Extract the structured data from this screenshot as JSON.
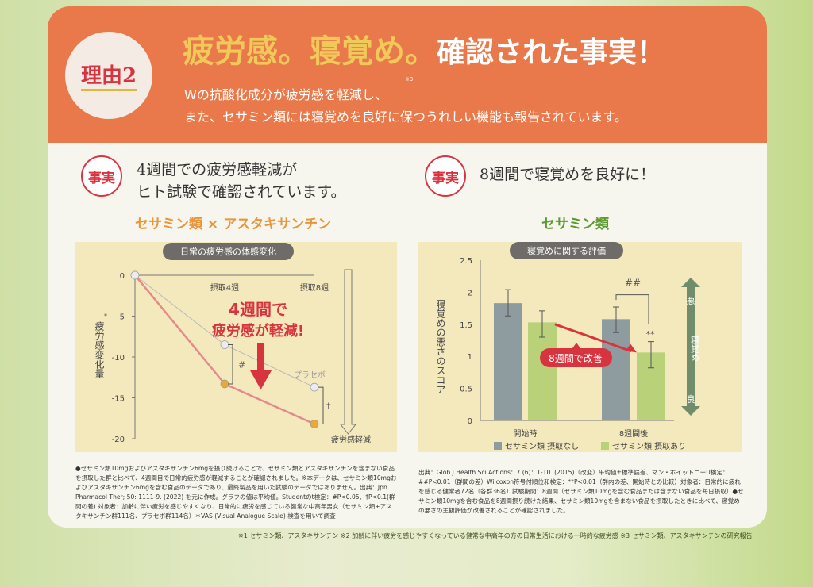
{
  "header": {
    "badge": "理由2",
    "title_a": "疲労感。寝覚め。",
    "title_b": "確認された事実！",
    "line1": "Wの抗酸化成分が疲労感を軽減し、",
    "sup": "※3",
    "line2": "また、セサミン類には寝覚めを良好に保つうれしい機能も報告されています。"
  },
  "left": {
    "fact": "事実",
    "lead1": "4週間での疲労感軽減が",
    "lead2": "ヒト試験で確認されています。",
    "chart_title": "セサミン類 × アスタキサンチン",
    "note": "●セサミン類10mgおよびアスタキサンチン6mgを摂り続けることで、セサミン類とアスタキサンチンを含まない食品を摂取した群と比べて、4週間目で日常的疲労感が軽減することが確認されました。※本データは、セサミン類10mgおよびアスタキサンチン6mgを含む食品のデータであり、最終製品を用いた試験のデータではありません。出典：Jpn Pharmacol Ther; 50: 1111-9. (2022) を元に作成。グラフの値は平均値。Studentのt検定：#P<0.05、†P<0.1(群間の差) 対象者：加齢に伴い疲労を感じやすくなり、日常的に疲労を感じている健常な中高年男女（セサミン類+アスタキサンチン群111名、プラセボ群114名）＊VAS (Visual Analogue Scale) 検査を用いて調査"
  },
  "right": {
    "fact": "事実",
    "lead1": "8週間で寝覚めを良好に！",
    "chart_title": "セサミン類",
    "note": "出典：Glob J Health Sci Actions：7 (6)：1-10. (2015)（改変）平均値±標準誤差、マン・ホイットニーU検定：##P<0.01（群間の差）Wilcoxon符号付順位和検定：**P<0.01（群内の差、開始時との比較）対象者：日常的に疲れを感じる健常者72名（各群36名）試験期間：8週間（セサミン類10mgを含む食品または含まない食品を毎日摂取）●セサミン類10mgを含む食品を8週間摂り続けた結果、セサミン類10mgを含まない食品を摂取したときに比べて、寝覚めの悪さの主観評価が改善されることが確認されました。"
  },
  "footnote": "※1 セサミン類、アスタキサンチン ※2 加齢に伴い疲労を感じやすくなっている健常な中高年の方の日常生活における一時的な疲労感 ※3 セサミン類、アスタキサンチンの研究報告",
  "chart_data": [
    {
      "type": "line",
      "title": "日常の疲労感の体感変化",
      "ylabel": "疲労感変化量",
      "ylabel_mark": "*",
      "ylim": [
        -20,
        0
      ],
      "yticks": [
        "0",
        "-5",
        "-10",
        "-15",
        "-20"
      ],
      "x": [
        "0",
        "摂取4週",
        "摂取8週"
      ],
      "series": [
        {
          "name": "セサミン類×アスタキサンチン",
          "values": [
            0,
            -13.3,
            -18.2
          ],
          "color": "#e58a8c"
        },
        {
          "name": "プラセボ",
          "values": [
            0,
            -8.5,
            -13.7
          ],
          "color": "#b8b8bc"
        }
      ],
      "annotations": {
        "callout1": "4週間で",
        "callout2": "疲労感が軽減!",
        "sig4": "#",
        "sig8": "†",
        "direction": "疲労感軽減"
      }
    },
    {
      "type": "bar",
      "title": "寝覚めに関する評価",
      "ylabel": "寝覚めの悪さのスコア",
      "ylim": [
        0,
        2.5
      ],
      "yticks": [
        "0",
        "0.5",
        "1",
        "1.5",
        "2",
        "2.5"
      ],
      "categories": [
        "開始時",
        "8週間後"
      ],
      "series": [
        {
          "name": "セサミン類 摂取なし",
          "values": [
            1.83,
            1.58
          ],
          "err_low": [
            1.63,
            1.37
          ],
          "err_high": [
            2.04,
            1.77
          ],
          "color": "#8f9c9f"
        },
        {
          "name": "セサミン類 摂取あり",
          "values": [
            1.53,
            1.06
          ],
          "err_low": [
            1.3,
            0.82
          ],
          "err_high": [
            1.71,
            1.23
          ],
          "color": "#b9d27a"
        }
      ],
      "annotations": {
        "improve": "8週間で改善",
        "sig_between": "##",
        "sig_within": "**",
        "scale_top": "悪",
        "scale_mid": "寝覚め",
        "scale_bottom": "良"
      }
    }
  ]
}
